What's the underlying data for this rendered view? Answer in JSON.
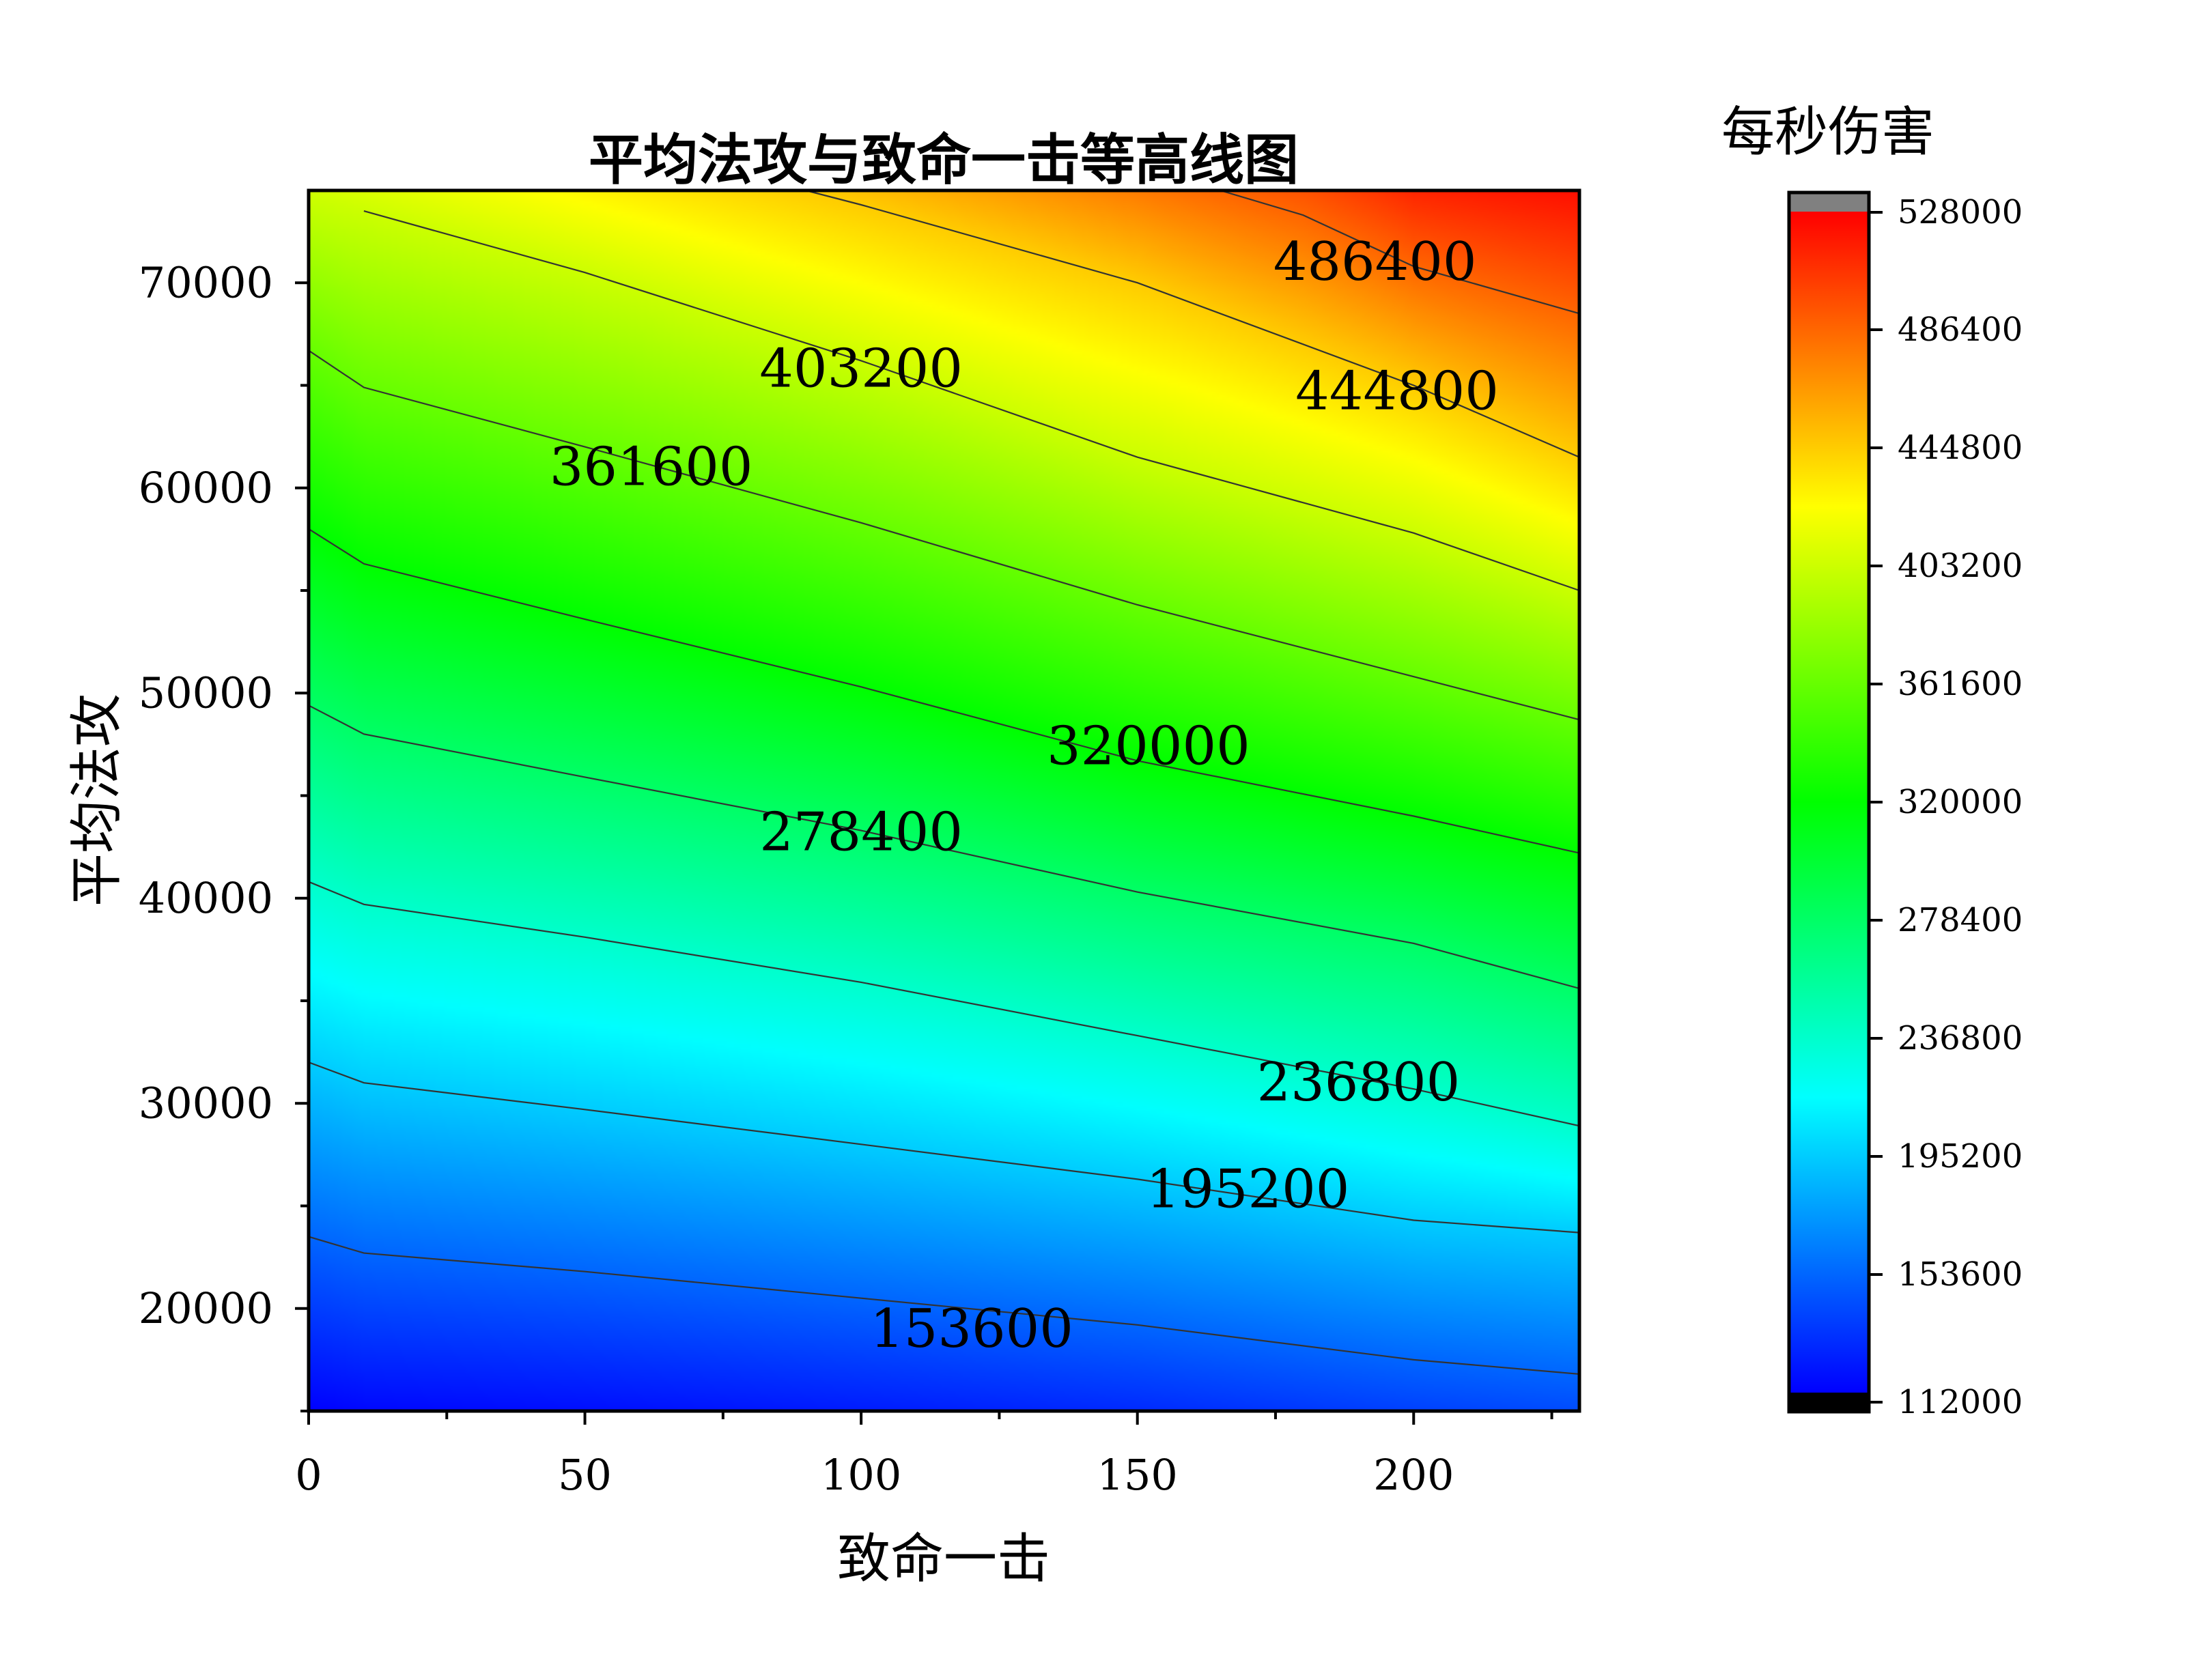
{
  "chart_data": {
    "type": "contour",
    "title": "平均法攻与致命一击等高线图",
    "xlabel": "致命一击",
    "ylabel": "平均法攻",
    "xlim": [
      0,
      230
    ],
    "ylim": [
      15000,
      74500
    ],
    "x_ticks": [
      0,
      50,
      100,
      150,
      200
    ],
    "y_ticks": [
      20000,
      30000,
      40000,
      50000,
      60000,
      70000
    ],
    "x_tick_labels": [
      "0",
      "50",
      "100",
      "150",
      "200"
    ],
    "y_tick_labels": [
      "20000",
      "30000",
      "40000",
      "50000",
      "60000",
      "70000"
    ],
    "colorbar": {
      "title": "每秒伤害",
      "range": [
        112000,
        528000
      ],
      "ticks": [
        112000,
        153600,
        195200,
        236800,
        278400,
        320000,
        361600,
        403200,
        444800,
        486400,
        528000
      ],
      "tick_labels": [
        "112000",
        "153600",
        "195200",
        "236800",
        "278400",
        "320000",
        "361600",
        "403200",
        "444800",
        "486400",
        "528000"
      ],
      "under_color": "#000000",
      "over_color": "#808080"
    },
    "colormap": [
      "#0000ff",
      "#00ffff",
      "#00ff00",
      "#ffff00",
      "#ff0000"
    ],
    "contour_lines": [
      {
        "level": 153600,
        "label": "153600",
        "points": [
          [
            0,
            23500
          ],
          [
            10,
            22700
          ],
          [
            50,
            21800
          ],
          [
            100,
            20500
          ],
          [
            150,
            19200
          ],
          [
            200,
            17500
          ],
          [
            230,
            16800
          ]
        ]
      },
      {
        "level": 195200,
        "label": "195200",
        "points": [
          [
            0,
            32000
          ],
          [
            10,
            31000
          ],
          [
            50,
            29700
          ],
          [
            100,
            28000
          ],
          [
            150,
            26300
          ],
          [
            200,
            24300
          ],
          [
            230,
            23700
          ]
        ]
      },
      {
        "level": 236800,
        "label": "236800",
        "points": [
          [
            0,
            40800
          ],
          [
            10,
            39700
          ],
          [
            50,
            38100
          ],
          [
            100,
            35900
          ],
          [
            150,
            33300
          ],
          [
            200,
            30700
          ],
          [
            230,
            28900
          ]
        ]
      },
      {
        "level": 278400,
        "label": "278400",
        "points": [
          [
            0,
            49400
          ],
          [
            10,
            48000
          ],
          [
            50,
            45900
          ],
          [
            100,
            43300
          ],
          [
            150,
            40300
          ],
          [
            200,
            37800
          ],
          [
            230,
            35600
          ]
        ]
      },
      {
        "level": 320000,
        "label": "320000",
        "points": [
          [
            0,
            58000
          ],
          [
            10,
            56300
          ],
          [
            50,
            53600
          ],
          [
            100,
            50300
          ],
          [
            150,
            46700
          ],
          [
            200,
            44000
          ],
          [
            230,
            42200
          ]
        ]
      },
      {
        "level": 361600,
        "label": "361600",
        "points": [
          [
            0,
            66700
          ],
          [
            10,
            64900
          ],
          [
            50,
            62000
          ],
          [
            100,
            58300
          ],
          [
            150,
            54300
          ],
          [
            200,
            50800
          ],
          [
            230,
            48700
          ]
        ]
      },
      {
        "level": 403200,
        "label": "403200",
        "points": [
          [
            10,
            73500
          ],
          [
            50,
            70500
          ],
          [
            100,
            66200
          ],
          [
            150,
            61500
          ],
          [
            200,
            57800
          ],
          [
            230,
            55000
          ]
        ]
      },
      {
        "level": 444800,
        "label": "444800",
        "points": [
          [
            90,
            74500
          ],
          [
            100,
            73800
          ],
          [
            150,
            70000
          ],
          [
            200,
            65000
          ],
          [
            230,
            61500
          ]
        ]
      },
      {
        "level": 486400,
        "label": "486400",
        "points": [
          [
            165,
            74500
          ],
          [
            180,
            73300
          ],
          [
            200,
            70800
          ],
          [
            230,
            68500
          ]
        ]
      }
    ],
    "contour_label_positions": [
      {
        "label": "153600",
        "x": 120,
        "y": 19000
      },
      {
        "label": "195200",
        "x": 170,
        "y": 25800
      },
      {
        "label": "236800",
        "x": 190,
        "y": 31000
      },
      {
        "label": "278400",
        "x": 100,
        "y": 43200
      },
      {
        "label": "320000",
        "x": 152,
        "y": 47400
      },
      {
        "label": "361600",
        "x": 62,
        "y": 61000
      },
      {
        "label": "403200",
        "x": 100,
        "y": 65800
      },
      {
        "label": "444800",
        "x": 197,
        "y": 64700
      },
      {
        "label": "486400",
        "x": 193,
        "y": 71000
      }
    ]
  }
}
